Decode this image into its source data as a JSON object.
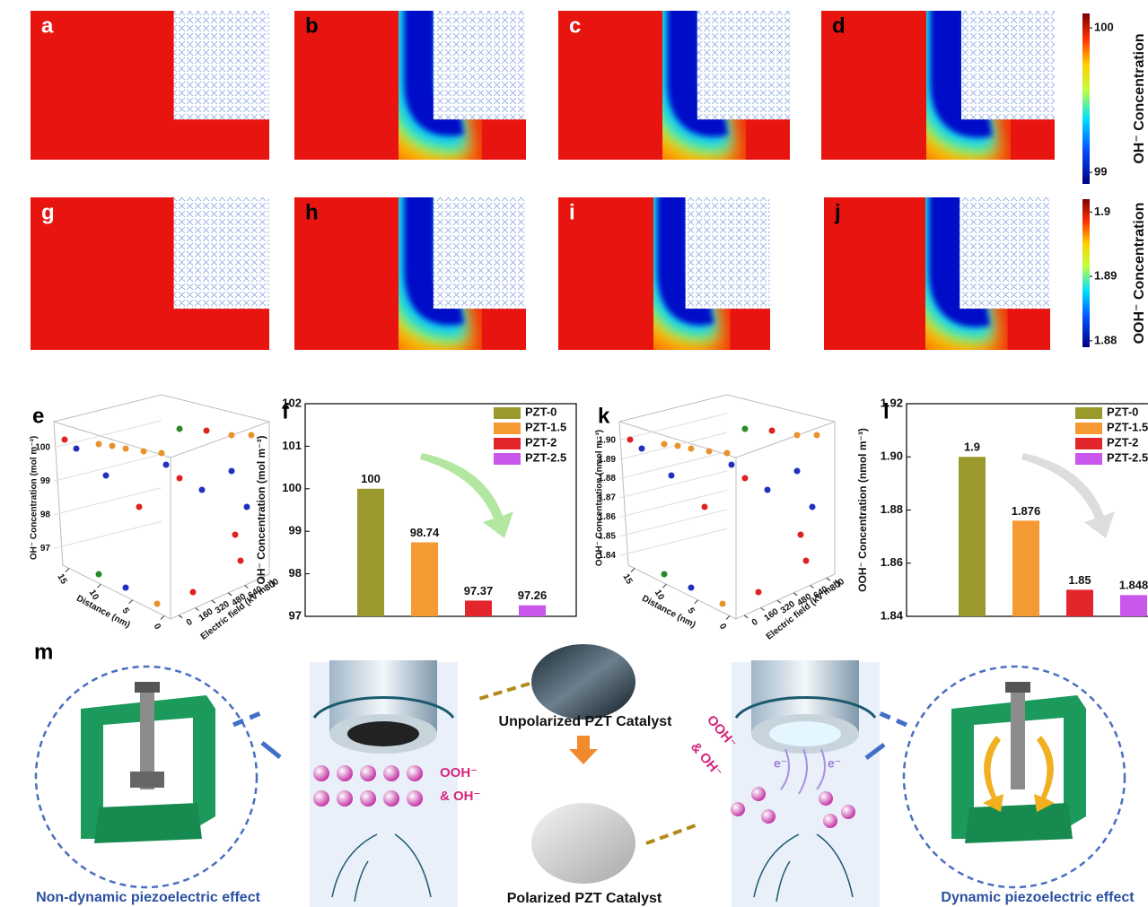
{
  "panels": {
    "a": "a",
    "b": "b",
    "c": "c",
    "d": "d",
    "g": "g",
    "h": "h",
    "i": "i",
    "j": "j",
    "e": "e",
    "f": "f",
    "k": "k",
    "l": "l",
    "m": "m"
  },
  "colorbars": [
    {
      "title": "OH⁻ Concentration",
      "lim": [
        98.92,
        100.1
      ],
      "ticks": [
        100,
        99
      ]
    },
    {
      "title": "OOH⁻ Concentration",
      "lim": [
        1.879,
        1.902
      ],
      "ticks": [
        1.9,
        1.89,
        1.88
      ]
    }
  ],
  "plots3d": [
    {
      "zlabel": "OH⁻ Concentration (mol m⁻³)",
      "xlabel": "Distance (nm)",
      "ylabel": "Electric field (kV m⁻¹)",
      "zlim": [
        96.5,
        100.5
      ],
      "zticks": [
        97,
        98,
        99,
        100
      ],
      "xlim": [
        16,
        -1
      ],
      "xticks": [
        15,
        10,
        5,
        0
      ],
      "ylim": [
        -80,
        880
      ],
      "yticks": [
        0,
        160,
        320,
        480,
        640,
        800
      ]
    },
    {
      "zlabel": "OOH⁻ Concentration (nmol m⁻³)",
      "xlabel": "Distance (nm)",
      "ylabel": "Electric field (kV m⁻¹)",
      "zlim": [
        1.835,
        1.905
      ],
      "zticks": [
        1.84,
        1.85,
        1.86,
        1.87,
        1.88,
        1.89,
        {
          "value": 1.9,
          "label": "1.90"
        }
      ],
      "xlim": [
        16,
        -1
      ],
      "xticks": [
        15,
        10,
        5,
        0
      ],
      "ylim": [
        -80,
        880
      ],
      "yticks": [
        0,
        160,
        320,
        480,
        640,
        800
      ]
    }
  ],
  "chart_data": [
    {
      "type": "bar",
      "ylabel": "OH⁻ Concentration (mol m⁻³)",
      "categories": [
        "PZT-0",
        "PZT-1.5",
        "PZT-2",
        "PZT-2.5"
      ],
      "values": [
        100,
        98.74,
        97.37,
        97.26
      ],
      "colors": [
        "#9a9a2c",
        "#f59a32",
        "#e3262c",
        "#c957ec"
      ],
      "ylim": [
        97,
        102
      ],
      "yticks": [
        97,
        98,
        99,
        100,
        101,
        102
      ],
      "legend": "upper right"
    },
    {
      "type": "bar",
      "ylabel": "OOH⁻ Concentration (nmol m⁻³)",
      "categories": [
        "PZT-0",
        "PZT-1.5",
        "PZT-2",
        "PZT-2.5"
      ],
      "values": [
        1.9,
        1.876,
        1.85,
        1.848
      ],
      "colors": [
        "#9a9a2c",
        "#f59a32",
        "#e3262c",
        "#c957ec"
      ],
      "ylim": [
        1.84,
        1.92
      ],
      "yticks": [
        1.84,
        1.86,
        1.88,
        {
          "value": 1.9,
          "label": "1.90"
        },
        1.92
      ],
      "legend": "upper right"
    }
  ],
  "scheme": {
    "unpolarized": "Unpolarized PZT Catalyst",
    "polarized": "Polarized PZT Catalyst",
    "species_left_1": "OOH⁻",
    "species_left_2": "& OH⁻",
    "species_right_1": "OOH⁻",
    "species_right_2": "& OH⁻",
    "electron_1": "e⁻",
    "electron_2": "e⁻",
    "left_caption": "Non-dynamic piezoelectric effect",
    "right_caption": "Dynamic piezoelectric effect"
  }
}
